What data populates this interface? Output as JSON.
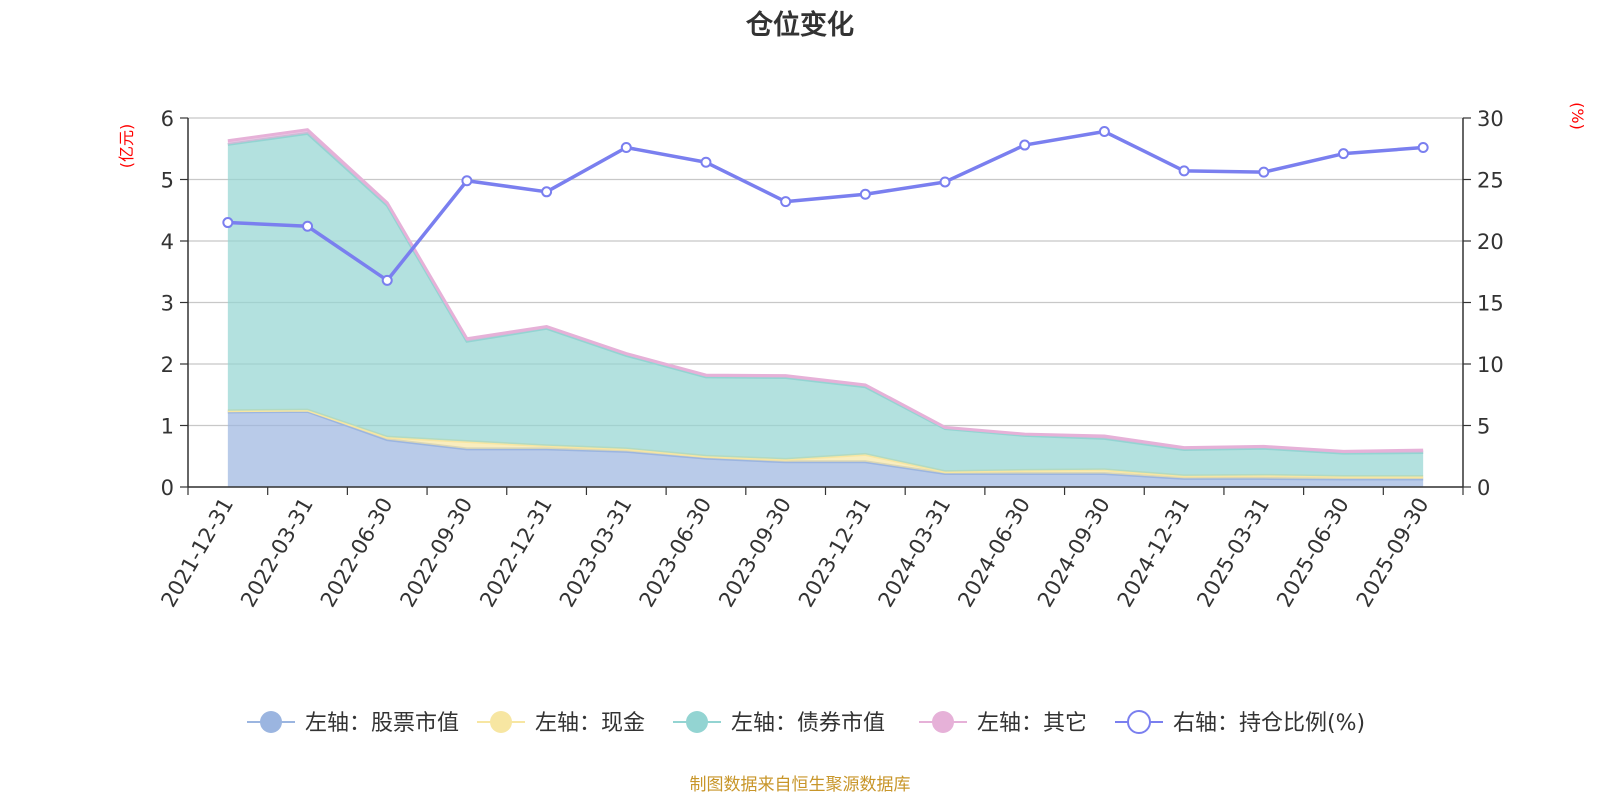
{
  "chart_data": {
    "type": "area",
    "title": "仓位变化",
    "left_axis_unit": "(亿元)",
    "right_axis_unit": "(%)",
    "left_ylim": [
      0,
      6
    ],
    "left_ticks": [
      "0",
      "1",
      "2",
      "3",
      "4",
      "5",
      "6"
    ],
    "right_ylim": [
      0,
      30
    ],
    "right_ticks": [
      "0",
      "5",
      "10",
      "15",
      "20",
      "25",
      "30"
    ],
    "categories": [
      "2021-12-31",
      "2022-03-31",
      "2022-06-30",
      "2022-09-30",
      "2022-12-31",
      "2023-03-31",
      "2023-06-30",
      "2023-09-30",
      "2023-12-31",
      "2024-03-31",
      "2024-06-30",
      "2024-09-30",
      "2024-12-31",
      "2025-03-31",
      "2025-06-30",
      "2025-09-30"
    ],
    "series": [
      {
        "name": "左轴：股票市值",
        "axis": "left",
        "stack": true,
        "color": "#9bb5e0",
        "values": [
          1.22,
          1.23,
          0.77,
          0.62,
          0.62,
          0.58,
          0.47,
          0.41,
          0.41,
          0.22,
          0.22,
          0.22,
          0.14,
          0.14,
          0.13,
          0.13
        ]
      },
      {
        "name": "左轴：现金",
        "axis": "left",
        "stack": true,
        "color": "#f7e6a2",
        "values": [
          0.02,
          0.02,
          0.04,
          0.12,
          0.05,
          0.04,
          0.03,
          0.04,
          0.12,
          0.03,
          0.05,
          0.06,
          0.04,
          0.05,
          0.04,
          0.04
        ]
      },
      {
        "name": "左轴：债券市值",
        "axis": "left",
        "stack": true,
        "color": "#93d4d2",
        "values": [
          4.33,
          4.5,
          3.77,
          1.63,
          1.91,
          1.52,
          1.29,
          1.33,
          1.1,
          0.7,
          0.57,
          0.51,
          0.43,
          0.44,
          0.38,
          0.39
        ]
      },
      {
        "name": "左轴：其它",
        "axis": "left",
        "stack": true,
        "color": "#e6b1d8",
        "values": [
          0.06,
          0.06,
          0.04,
          0.04,
          0.03,
          0.03,
          0.03,
          0.03,
          0.03,
          0.02,
          0.02,
          0.04,
          0.03,
          0.03,
          0.03,
          0.04
        ]
      },
      {
        "name": "右轴：持仓比例(%)",
        "axis": "right",
        "stack": false,
        "color": "#7a7fef",
        "values": [
          21.5,
          21.2,
          16.8,
          24.9,
          24.0,
          27.6,
          26.4,
          23.2,
          23.8,
          24.8,
          27.8,
          28.9,
          25.7,
          25.6,
          27.1,
          27.6
        ]
      }
    ],
    "legend_position": "bottom",
    "grid": true
  },
  "footer": {
    "source": "制图数据来自恒生聚源数据库"
  }
}
